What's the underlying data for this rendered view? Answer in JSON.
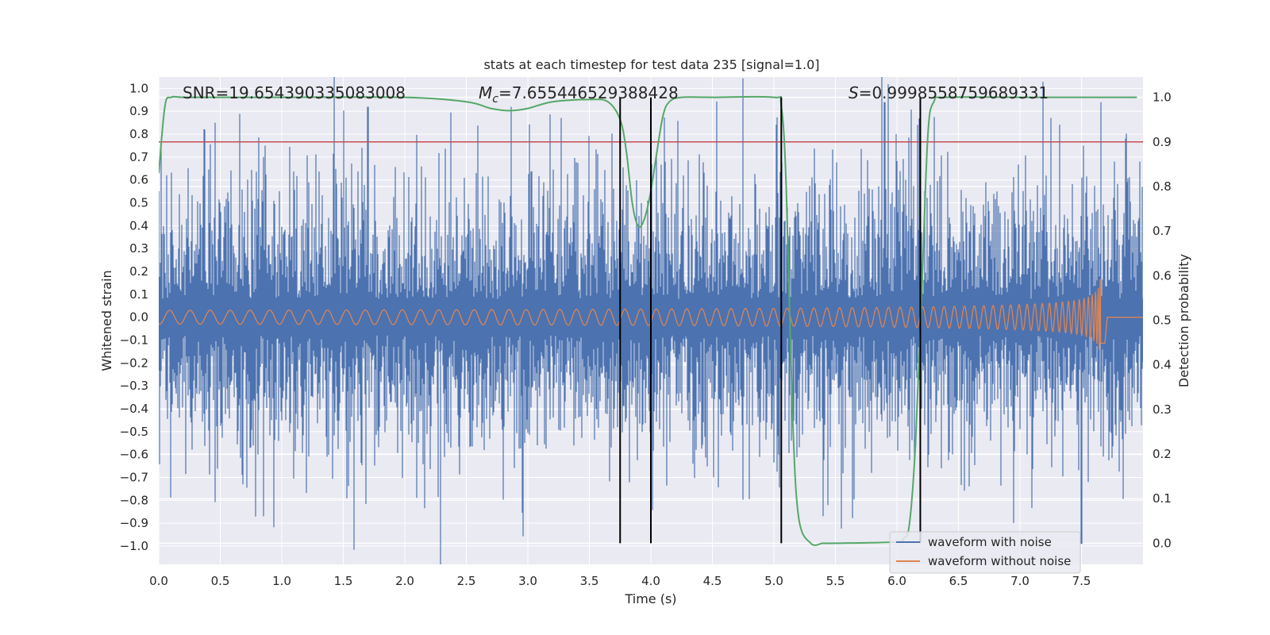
{
  "chart_data": {
    "type": "line",
    "title": "stats at each timestep for test data 235 [signal=1.0]",
    "xlabel": "Time (s)",
    "ylabel_left": "Whitened strain",
    "ylabel_right": "Detection probability",
    "xlim": [
      0.0,
      8.0
    ],
    "ylim_left": [
      -1.08,
      1.05
    ],
    "ylim_right": [
      -0.0473,
      1.0455
    ],
    "x_ticks": [
      "0.0",
      "0.5",
      "1.0",
      "1.5",
      "2.0",
      "2.5",
      "3.0",
      "3.5",
      "4.0",
      "4.5",
      "5.0",
      "5.5",
      "6.0",
      "6.5",
      "7.0",
      "7.5"
    ],
    "y_left_ticks": [
      "1.0",
      "0.9",
      "0.8",
      "0.7",
      "0.6",
      "0.5",
      "0.4",
      "0.3",
      "0.2",
      "0.1",
      "0.0",
      "−0.1",
      "−0.2",
      "−0.3",
      "−0.4",
      "−0.5",
      "−0.6",
      "−0.7",
      "−0.8",
      "−0.9",
      "−1.0"
    ],
    "y_right_ticks": [
      "1.0",
      "0.9",
      "0.8",
      "0.7",
      "0.6",
      "0.5",
      "0.4",
      "0.3",
      "0.2",
      "0.1",
      "0.0"
    ],
    "grid": true,
    "legend_position": "lower-right",
    "annotations": {
      "snr": "SNR=19.654390335083008",
      "mc_symbol": "M",
      "mc_sub": "c",
      "mc_value": "=7.655446529388428",
      "s_symbol": "S",
      "s_value": "=0.9998558759689331"
    },
    "threshold_probability": 0.9,
    "vertical_lines_x": [
      3.75,
      4.0,
      5.06,
      6.19
    ],
    "series": [
      {
        "name": "waveform with noise",
        "color": "#4c72b0",
        "description_values": {
          "typical_amplitude": 0.3,
          "peaks": [
            [
              1.7,
              0.92
            ],
            [
              0.85,
              -0.87
            ],
            [
              5.9,
              0.94
            ],
            [
              7.5,
              -0.99
            ],
            [
              7.66,
              0.94
            ],
            [
              6.95,
              -0.9
            ]
          ]
        }
      },
      {
        "name": "waveform without noise",
        "color": "#dd8452",
        "description_values": {
          "start_amplitude": 0.03,
          "peak_time": 7.66,
          "peak_amplitude": 0.55,
          "end_time": 7.69
        }
      },
      {
        "name": "detection probability",
        "color": "#55a868",
        "x": [
          0.0,
          0.05,
          0.1,
          0.2,
          0.5,
          1.0,
          2.0,
          2.5,
          2.7,
          2.85,
          3.0,
          3.2,
          3.5,
          3.65,
          3.75,
          3.8,
          3.85,
          3.9,
          3.95,
          4.0,
          4.05,
          4.1,
          4.15,
          4.25,
          4.5,
          5.0,
          5.06,
          5.1,
          5.15,
          5.2,
          5.3,
          5.4,
          5.5,
          6.0,
          6.05,
          6.1,
          6.15,
          6.2,
          6.25,
          6.3,
          6.4,
          7.0,
          7.5,
          7.95
        ],
        "y": [
          0.83,
          0.98,
          1.0,
          1.0,
          1.0,
          1.0,
          1.0,
          0.99,
          0.975,
          0.97,
          0.975,
          0.99,
          0.995,
          0.99,
          0.95,
          0.88,
          0.76,
          0.71,
          0.73,
          0.79,
          0.88,
          0.96,
          0.99,
          1.0,
          1.0,
          1.0,
          0.98,
          0.8,
          0.3,
          0.06,
          0.0,
          0.0,
          0.0,
          0.003,
          0.01,
          0.04,
          0.22,
          0.55,
          0.91,
          0.99,
          1.0,
          1.0,
          1.0,
          1.0
        ]
      }
    ]
  }
}
